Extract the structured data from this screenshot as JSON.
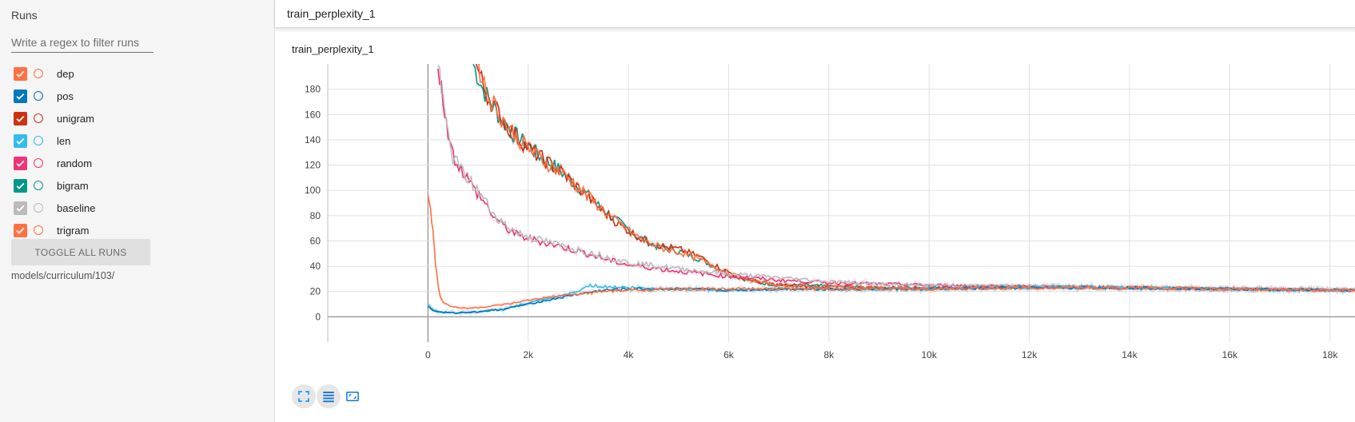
{
  "sidebar": {
    "title": "Runs",
    "filter_placeholder": "Write a regex to filter runs",
    "runs": [
      {
        "label": "dep",
        "color": "#ff7043"
      },
      {
        "label": "pos",
        "color": "#0077bb"
      },
      {
        "label": "unigram",
        "color": "#cc3311"
      },
      {
        "label": "len",
        "color": "#33bbee"
      },
      {
        "label": "random",
        "color": "#ee3377"
      },
      {
        "label": "bigram",
        "color": "#009988"
      },
      {
        "label": "baseline",
        "color": "#bbbbbb"
      },
      {
        "label": "trigram",
        "color": "#ff7043"
      }
    ],
    "toggle_label": "TOGGLE ALL RUNS",
    "logdir": "models/curriculum/103/"
  },
  "header": {
    "title": "train_perplexity_1"
  },
  "chart_data": {
    "type": "line",
    "title": "train_perplexity_1",
    "xlim": [
      -2000,
      18500
    ],
    "ylim": [
      -20,
      200
    ],
    "xticks": [
      0,
      2000,
      4000,
      6000,
      8000,
      10000,
      12000,
      14000,
      16000,
      18000
    ],
    "xtick_labels": [
      "0",
      "2k",
      "4k",
      "6k",
      "8k",
      "10k",
      "12k",
      "14k",
      "16k",
      "18k"
    ],
    "yticks": [
      0,
      20,
      40,
      60,
      80,
      100,
      120,
      140,
      160,
      180
    ],
    "ytick_labels": [
      "0",
      "20",
      "40",
      "60",
      "80",
      "100",
      "120",
      "140",
      "160",
      "180"
    ],
    "grid": true,
    "series": [
      {
        "color": "#009988",
        "x": [
          900,
          1100,
          1400,
          1700,
          2000,
          2300,
          2600,
          3000,
          3400,
          3800,
          4200,
          4600,
          5000,
          5400,
          5800,
          6200,
          6600,
          7000,
          7500,
          8000,
          9000,
          10000,
          12000,
          14000,
          16000,
          18500
        ],
        "y": [
          200,
          180,
          160,
          145,
          135,
          125,
          117,
          103,
          88,
          75,
          63,
          55,
          52,
          46,
          38,
          31,
          27,
          25,
          25,
          24,
          23,
          23,
          24,
          23,
          22,
          21
        ]
      },
      {
        "color": "#cc3311",
        "x": [
          950,
          1150,
          1450,
          1750,
          2050,
          2350,
          2650,
          3050,
          3450,
          3850,
          4250,
          4650,
          5050,
          5450,
          5850,
          6250,
          6650,
          7050,
          7550,
          8050,
          9000,
          10000,
          12000,
          14000,
          16000,
          18500
        ],
        "y": [
          200,
          178,
          158,
          143,
          132,
          123,
          115,
          100,
          85,
          72,
          62,
          56,
          53,
          47,
          38,
          31,
          27,
          25,
          24,
          24,
          23,
          23,
          24,
          23,
          22,
          21
        ]
      },
      {
        "color": "#ff7043",
        "x": [
          1000,
          1200,
          1500,
          1800,
          2100,
          2400,
          2700,
          3100,
          3500,
          3900,
          4300,
          4700,
          5100,
          5500,
          5900,
          6300,
          6700,
          7100,
          7600,
          8100,
          9000,
          10000,
          12000,
          14000,
          16000,
          18500
        ],
        "y": [
          200,
          176,
          156,
          141,
          130,
          121,
          113,
          99,
          84,
          71,
          60,
          54,
          50,
          44,
          36,
          30,
          27,
          25,
          24,
          24,
          23,
          22,
          23,
          23,
          22,
          21
        ]
      },
      {
        "color": "#ee3377",
        "x": [
          200,
          300,
          400,
          500,
          700,
          900,
          1100,
          1300,
          1500,
          1800,
          2200,
          2600,
          3000,
          3500,
          4000,
          5000,
          6000,
          7000,
          8000,
          9000,
          10000,
          12000,
          14000,
          16000,
          18500
        ],
        "y": [
          200,
          170,
          148,
          128,
          115,
          102,
          92,
          80,
          72,
          64,
          60,
          56,
          52,
          46,
          41,
          36,
          32,
          29,
          27,
          26,
          25,
          24,
          23,
          22,
          21
        ]
      },
      {
        "color": "#bbbbbb",
        "x": [
          200,
          300,
          400,
          500,
          700,
          900,
          1100,
          1300,
          1500,
          1800,
          2200,
          2600,
          3000,
          3500,
          4000,
          5000,
          6000,
          7000,
          8000,
          9000,
          10000,
          12000,
          14000,
          16000,
          18500
        ],
        "y": [
          200,
          168,
          145,
          126,
          114,
          104,
          94,
          82,
          74,
          66,
          61,
          57,
          53,
          48,
          43,
          38,
          34,
          31,
          28,
          26,
          25,
          24,
          23,
          22,
          21
        ]
      },
      {
        "color": "#33bbee",
        "x": [
          0,
          100,
          200,
          500,
          1000,
          1500,
          2000,
          2500,
          3000,
          3200,
          3500,
          4000,
          5000,
          6000,
          7000,
          8000,
          10000,
          12000,
          13000,
          14000,
          16000,
          18500
        ],
        "y": [
          10,
          6,
          4,
          3,
          4,
          6,
          11,
          15,
          20,
          25,
          24,
          23,
          22,
          21,
          22,
          22,
          22,
          23,
          24,
          23,
          22,
          21
        ]
      },
      {
        "color": "#0077bb",
        "x": [
          0,
          100,
          200,
          500,
          1000,
          1500,
          2000,
          2500,
          3000,
          3500,
          4000,
          5000,
          6000,
          7000,
          8000,
          10000,
          12000,
          14000,
          16000,
          18500
        ],
        "y": [
          8,
          5,
          4,
          3,
          4,
          6,
          10,
          14,
          18,
          21,
          22,
          22,
          21,
          22,
          22,
          22,
          23,
          23,
          22,
          21
        ]
      },
      {
        "color": "#ff7043",
        "x": [
          0,
          50,
          100,
          150,
          200,
          250,
          300,
          400,
          600,
          900,
          1200,
          1600,
          2000,
          2500,
          3000,
          3500,
          4000,
          5000,
          6000,
          7000,
          8000,
          10000,
          12000,
          14000,
          16000,
          18500
        ],
        "y": [
          99,
          88,
          68,
          42,
          25,
          16,
          12,
          9,
          7,
          7,
          8,
          10,
          13,
          16,
          18,
          20,
          21,
          22,
          22,
          22,
          22,
          22,
          23,
          23,
          22,
          21
        ]
      }
    ]
  }
}
